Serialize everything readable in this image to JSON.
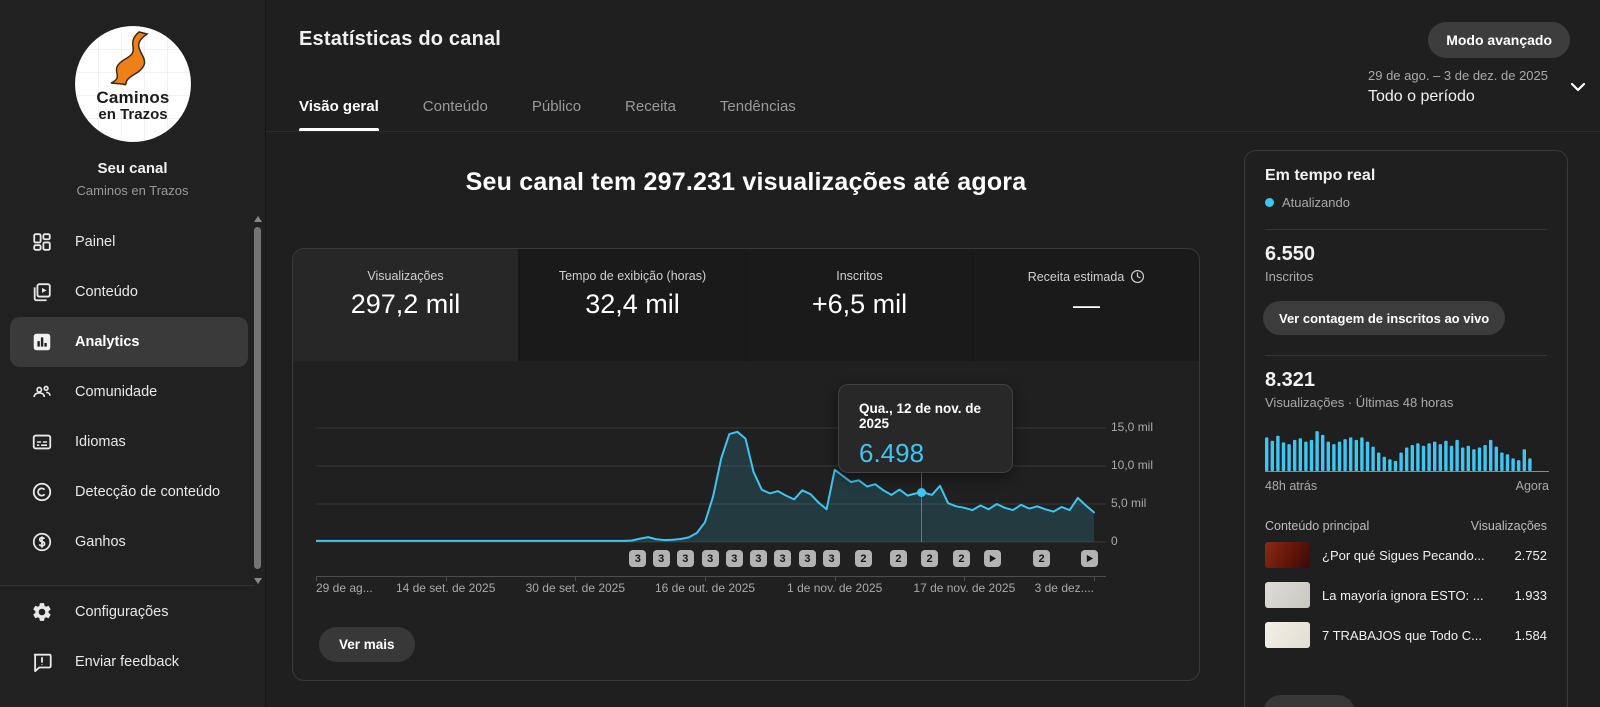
{
  "accent": "#3ec5f0",
  "sidebar": {
    "avatar_line1": "Caminos",
    "avatar_line2": "en Trazos",
    "channel_name": "Seu canal",
    "channel_handle": "Caminos en Trazos",
    "items": [
      {
        "label": "Painel"
      },
      {
        "label": "Conteúdo"
      },
      {
        "label": "Analytics",
        "active": true
      },
      {
        "label": "Comunidade"
      },
      {
        "label": "Idiomas"
      },
      {
        "label": "Detecção de conteúdo"
      },
      {
        "label": "Ganhos"
      }
    ],
    "footer_items": [
      {
        "label": "Configurações"
      },
      {
        "label": "Enviar feedback"
      }
    ]
  },
  "header": {
    "title": "Estatísticas do canal",
    "tabs": [
      {
        "label": "Visão geral",
        "active": true
      },
      {
        "label": "Conteúdo"
      },
      {
        "label": "Público"
      },
      {
        "label": "Receita"
      },
      {
        "label": "Tendências"
      }
    ],
    "advanced_mode_button": "Modo avançado",
    "date_range": "29 de ago. – 3 de dez. de 2025",
    "period": "Todo o período"
  },
  "overview": {
    "headline": "Seu canal tem 297.231 visualizações até agora",
    "metrics": [
      {
        "label": "Visualizações",
        "value": "297,2 mil",
        "selected": true
      },
      {
        "label": "Tempo de exibição (horas)",
        "value": "32,4 mil"
      },
      {
        "label": "Inscritos",
        "value": "+6,5 mil"
      },
      {
        "label": "Receita estimada",
        "value": "—",
        "icon": "clock"
      }
    ],
    "see_more_button": "Ver mais"
  },
  "tooltip": {
    "date": "Qua., 12 de nov. de 2025",
    "value": "6.498"
  },
  "chart_data": [
    {
      "type": "area",
      "title": "Visualizações diárias do canal",
      "x_labels": [
        "29 de ag...",
        "14 de set. de 2025",
        "30 de set. de 2025",
        "16 de out. de 2025",
        "1 de nov. de 2025",
        "17 de nov. de 2025",
        "3 de dez...."
      ],
      "y_ticks": [
        "15,0 mil",
        "10,0 mil",
        "5,0 mil",
        "0"
      ],
      "ylim": [
        0,
        15000
      ],
      "grid": true,
      "values": [
        150,
        150,
        150,
        150,
        150,
        150,
        150,
        150,
        150,
        150,
        150,
        150,
        150,
        150,
        150,
        150,
        150,
        150,
        150,
        150,
        150,
        150,
        150,
        150,
        150,
        150,
        150,
        150,
        150,
        150,
        150,
        150,
        150,
        150,
        150,
        150,
        150,
        150,
        150,
        200,
        450,
        650,
        350,
        250,
        300,
        400,
        600,
        1200,
        2600,
        6000,
        11000,
        14200,
        14500,
        13600,
        9200,
        6900,
        6400,
        6700,
        6100,
        5600,
        6800,
        6300,
        5200,
        4300,
        9500,
        8700,
        7900,
        8100,
        7300,
        7600,
        6800,
        6200,
        6900,
        6100,
        6400,
        6498,
        6200,
        7400,
        5100,
        4700,
        4500,
        4200,
        4800,
        4300,
        5000,
        4500,
        4200,
        4900,
        4400,
        4700,
        4300,
        4000,
        4600,
        4200,
        5800,
        4800,
        3900
      ],
      "hover": {
        "x_fraction": 0.777,
        "value": 6498,
        "label": "6.498",
        "date": "Qua., 12 de nov. de 2025"
      },
      "markers": [
        {
          "x": 0.413,
          "label": "3"
        },
        {
          "x": 0.443,
          "label": "3"
        },
        {
          "x": 0.474,
          "label": "3"
        },
        {
          "x": 0.506,
          "label": "3"
        },
        {
          "x": 0.537,
          "label": "3"
        },
        {
          "x": 0.568,
          "label": "3"
        },
        {
          "x": 0.599,
          "label": "3"
        },
        {
          "x": 0.631,
          "label": "3"
        },
        {
          "x": 0.662,
          "label": "3"
        },
        {
          "x": 0.703,
          "label": "2"
        },
        {
          "x": 0.748,
          "label": "2"
        },
        {
          "x": 0.788,
          "label": "2"
        },
        {
          "x": 0.829,
          "label": "2"
        },
        {
          "x": 0.869,
          "icon": "play"
        },
        {
          "x": 0.932,
          "label": "2"
        },
        {
          "x": 0.994,
          "icon": "play"
        }
      ]
    },
    {
      "type": "bar",
      "title": "Visualizações · Últimas 48 horas",
      "x_left": "48h atrás",
      "x_right": "Agora",
      "values": [
        0.8,
        0.72,
        0.84,
        0.68,
        0.64,
        0.74,
        0.78,
        0.7,
        0.74,
        0.95,
        0.86,
        0.7,
        0.64,
        0.7,
        0.76,
        0.8,
        0.74,
        0.8,
        0.7,
        0.58,
        0.44,
        0.34,
        0.28,
        0.24,
        0.44,
        0.56,
        0.62,
        0.66,
        0.6,
        0.66,
        0.7,
        0.64,
        0.72,
        0.6,
        0.74,
        0.56,
        0.6,
        0.52,
        0.56,
        0.62,
        0.74,
        0.58,
        0.44,
        0.4,
        0.3,
        0.26,
        0.52,
        0.3
      ]
    }
  ],
  "realtime": {
    "title": "Em tempo real",
    "updating": "Atualizando",
    "subscribers": "6.550",
    "subscribers_label": "Inscritos",
    "live_count_button": "Ver contagem de inscritos ao vivo",
    "views_48h": "8.321",
    "views_label": "Visualizações · Últimas 48 horas",
    "axis_left": "48h atrás",
    "axis_right": "Agora",
    "table_header_left": "Conteúdo principal",
    "table_header_right": "Visualizações",
    "videos": [
      {
        "title": "¿Por qué Sigues Pecando...",
        "views": "2.752",
        "thumb_bg": "linear-gradient(120deg,#8a2a16 0%,#5e1408 60%,#38090b 100%)"
      },
      {
        "title": "La mayoría ignora ESTO: ...",
        "views": "1.933",
        "thumb_bg": "linear-gradient(120deg,#dddcd6 0%,#c9c8c2 100%)"
      },
      {
        "title": "7 TRABAJOS que Todo C...",
        "views": "1.584",
        "thumb_bg": "linear-gradient(120deg,#f3f0e9 0%,#e2ddcf 100%)"
      }
    ]
  }
}
